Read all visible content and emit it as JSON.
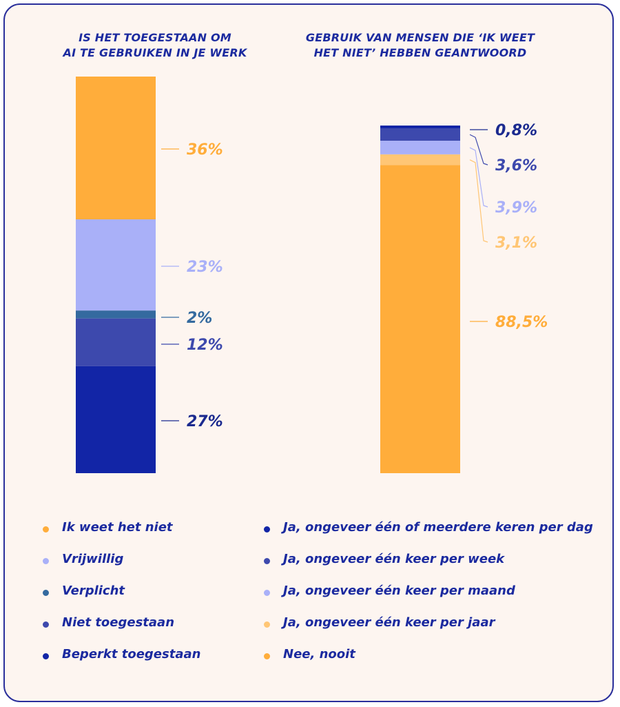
{
  "chart_data": [
    {
      "type": "bar",
      "subtype": "stacked-100",
      "title_lines": [
        "IS HET TOEGESTAAN OM",
        "AI TE GEBRUIKEN IN JE WERK"
      ],
      "segments": [
        {
          "name": "Ik weet het niet",
          "value": 36,
          "label": "36%",
          "color": "#ffad3b",
          "label_color": "#ffad3b"
        },
        {
          "name": "Vrijwillig",
          "value": 23,
          "label": "23%",
          "color": "#a9b0f8",
          "label_color": "#a9b0f8"
        },
        {
          "name": "Verplicht",
          "value": 2,
          "label": "2%",
          "color": "#346a9f",
          "label_color": "#346a9f"
        },
        {
          "name": "Niet toegestaan",
          "value": 12,
          "label": "12%",
          "color": "#3d49ad",
          "label_color": "#3d49ad"
        },
        {
          "name": "Beperkt toegestaan",
          "value": 27,
          "label": "27%",
          "color": "#1225a6",
          "label_color": "#1b2a8f"
        }
      ]
    },
    {
      "type": "bar",
      "subtype": "stacked-100",
      "title_lines": [
        "GEBRUIK VAN MENSEN DIE ‘IK WEET",
        "HET NIET’ HEBBEN GEANTWOORD"
      ],
      "segments": [
        {
          "name": "Ja, ongeveer één of meerdere keren per dag",
          "value": 0.8,
          "label": "0,8%",
          "color": "#1225a6",
          "label_color": "#1b2a8f"
        },
        {
          "name": "Ja, ongeveer één keer per week",
          "value": 3.6,
          "label": "3,6%",
          "color": "#3d49ad",
          "label_color": "#3d49ad"
        },
        {
          "name": "Ja, ongeveer één keer per maand",
          "value": 3.9,
          "label": "3,9%",
          "color": "#a9b0f8",
          "label_color": "#a9b0f8"
        },
        {
          "name": "Ja, ongeveer één keer per jaar",
          "value": 3.1,
          "label": "3,1%",
          "color": "#ffc675",
          "label_color": "#ffc675"
        },
        {
          "name": "Nee, nooit",
          "value": 88.5,
          "label": "88,5%",
          "color": "#ffad3b",
          "label_color": "#ffad3b"
        }
      ]
    }
  ],
  "legend_left": [
    {
      "label": "Ik weet het niet",
      "color": "#ffad3b"
    },
    {
      "label": "Vrijwillig",
      "color": "#a9b0f8"
    },
    {
      "label": "Verplicht",
      "color": "#346a9f"
    },
    {
      "label": "Niet toegestaan",
      "color": "#3d49ad"
    },
    {
      "label": "Beperkt toegestaan",
      "color": "#1225a6"
    }
  ],
  "legend_right": [
    {
      "label": "Ja, ongeveer één of meerdere keren per dag",
      "color": "#1225a6"
    },
    {
      "label": "Ja, ongeveer één keer per week",
      "color": "#3d49ad"
    },
    {
      "label": "Ja, ongeveer één keer per maand",
      "color": "#a9b0f8"
    },
    {
      "label": "Ja, ongeveer één keer per jaar",
      "color": "#ffc675"
    },
    {
      "label": "Nee, nooit",
      "color": "#ffad3b"
    }
  ]
}
